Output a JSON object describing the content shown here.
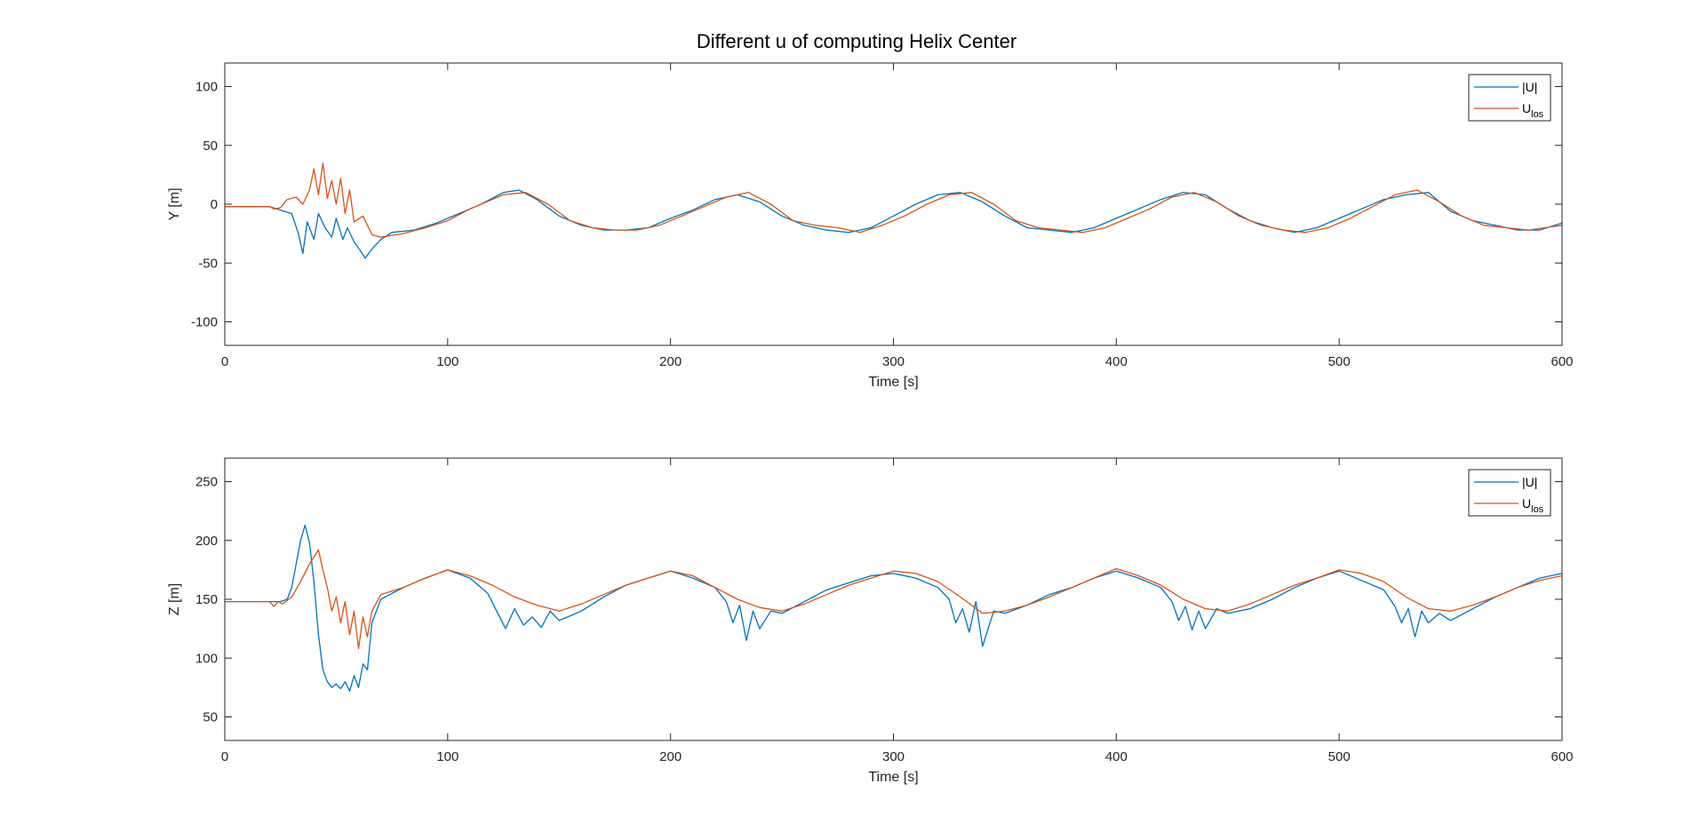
{
  "figure_title": "Different u of computing Helix Center",
  "colors": {
    "U": "#0072BD",
    "Ulos": "#D95319",
    "axes": "#262626"
  },
  "chart_data": [
    {
      "type": "line",
      "title": "Different u of computing Helix Center",
      "xlabel": "Time [s]",
      "ylabel": "Y [m]",
      "xlim": [
        0,
        600
      ],
      "ylim": [
        -120,
        120
      ],
      "xticks": [
        0,
        100,
        200,
        300,
        400,
        500,
        600
      ],
      "yticks": [
        -100,
        -50,
        0,
        50,
        100
      ],
      "xtick_labels": [
        "0",
        "100",
        "200",
        "300",
        "400",
        "500",
        "600"
      ],
      "ytick_labels": [
        "-100",
        "-50",
        "0",
        "50",
        "100"
      ],
      "legend_position": "top-right",
      "legend": {
        "entries": [
          {
            "main": "|U|",
            "sub": ""
          },
          {
            "main": "U",
            "sub": "los"
          }
        ]
      },
      "series": [
        {
          "name": "|U|",
          "x": [
            0,
            20,
            30,
            33,
            35,
            37,
            40,
            42,
            45,
            48,
            50,
            53,
            55,
            58,
            61,
            63,
            66,
            70,
            75,
            85,
            95,
            105,
            115,
            125,
            132,
            140,
            150,
            160,
            170,
            180,
            190,
            200,
            210,
            220,
            230,
            240,
            250,
            260,
            270,
            280,
            290,
            300,
            310,
            320,
            330,
            340,
            350,
            360,
            370,
            380,
            390,
            400,
            410,
            420,
            430,
            440,
            450,
            460,
            470,
            480,
            490,
            500,
            510,
            520,
            530,
            540,
            550,
            560,
            570,
            580,
            590,
            600
          ],
          "y": [
            -2,
            -2,
            -8,
            -25,
            -42,
            -15,
            -30,
            -8,
            -20,
            -28,
            -12,
            -30,
            -20,
            -32,
            -40,
            -46,
            -38,
            -30,
            -24,
            -22,
            -16,
            -8,
            0,
            10,
            12,
            4,
            -10,
            -18,
            -22,
            -22,
            -20,
            -12,
            -5,
            4,
            8,
            2,
            -10,
            -18,
            -22,
            -24,
            -20,
            -10,
            0,
            8,
            10,
            2,
            -10,
            -20,
            -22,
            -24,
            -20,
            -12,
            -4,
            4,
            10,
            8,
            -4,
            -14,
            -20,
            -24,
            -20,
            -12,
            -4,
            4,
            8,
            10,
            -6,
            -14,
            -18,
            -22,
            -22,
            -16
          ]
        },
        {
          "name": "U_los",
          "x": [
            0,
            20,
            22,
            25,
            28,
            32,
            35,
            38,
            40,
            42,
            44,
            46,
            48,
            50,
            52,
            54,
            56,
            58,
            62,
            66,
            70,
            80,
            90,
            100,
            110,
            125,
            135,
            145,
            155,
            165,
            175,
            185,
            195,
            205,
            215,
            225,
            235,
            245,
            255,
            265,
            275,
            285,
            295,
            305,
            315,
            325,
            335,
            345,
            355,
            365,
            375,
            385,
            395,
            405,
            415,
            425,
            435,
            445,
            455,
            465,
            475,
            485,
            495,
            505,
            515,
            525,
            535,
            545,
            555,
            565,
            575,
            585,
            600
          ],
          "y": [
            -2,
            -2,
            -4,
            -3,
            4,
            6,
            0,
            12,
            30,
            8,
            35,
            5,
            20,
            0,
            22,
            -8,
            12,
            -15,
            -10,
            -26,
            -28,
            -25,
            -20,
            -14,
            -4,
            8,
            10,
            0,
            -14,
            -20,
            -22,
            -22,
            -18,
            -10,
            -2,
            6,
            10,
            0,
            -14,
            -18,
            -20,
            -24,
            -18,
            -10,
            0,
            8,
            10,
            0,
            -14,
            -20,
            -22,
            -24,
            -20,
            -12,
            -4,
            6,
            10,
            2,
            -10,
            -18,
            -22,
            -24,
            -20,
            -12,
            -2,
            8,
            12,
            2,
            -10,
            -18,
            -20,
            -22,
            -18
          ]
        }
      ]
    },
    {
      "type": "line",
      "title": "",
      "xlabel": "Time [s]",
      "ylabel": "Z [m]",
      "xlim": [
        0,
        600
      ],
      "ylim": [
        30,
        270
      ],
      "xticks": [
        0,
        100,
        200,
        300,
        400,
        500,
        600
      ],
      "yticks": [
        50,
        100,
        150,
        200,
        250
      ],
      "xtick_labels": [
        "0",
        "100",
        "200",
        "300",
        "400",
        "500",
        "600"
      ],
      "ytick_labels": [
        "50",
        "100",
        "150",
        "200",
        "250"
      ],
      "legend_position": "top-right",
      "legend": {
        "entries": [
          {
            "main": "|U|",
            "sub": ""
          },
          {
            "main": "U",
            "sub": "los"
          }
        ]
      },
      "series": [
        {
          "name": "|U|",
          "x": [
            0,
            20,
            25,
            28,
            30,
            32,
            34,
            36,
            38,
            40,
            42,
            44,
            46,
            48,
            50,
            52,
            54,
            56,
            58,
            60,
            62,
            64,
            66,
            68,
            70,
            80,
            90,
            100,
            110,
            118,
            122,
            126,
            130,
            134,
            138,
            142,
            146,
            150,
            160,
            170,
            180,
            190,
            200,
            210,
            220,
            225,
            228,
            231,
            234,
            237,
            240,
            245,
            250,
            260,
            270,
            280,
            290,
            300,
            310,
            320,
            325,
            328,
            331,
            334,
            337,
            340,
            345,
            350,
            360,
            370,
            380,
            390,
            400,
            410,
            420,
            425,
            428,
            431,
            434,
            437,
            440,
            445,
            450,
            460,
            470,
            480,
            490,
            500,
            510,
            520,
            525,
            528,
            531,
            534,
            537,
            540,
            545,
            550,
            560,
            570,
            580,
            590,
            600
          ],
          "y": [
            148,
            148,
            148,
            150,
            160,
            180,
            200,
            213,
            198,
            165,
            120,
            90,
            80,
            75,
            78,
            74,
            80,
            72,
            85,
            75,
            95,
            90,
            130,
            140,
            150,
            160,
            168,
            175,
            168,
            155,
            140,
            125,
            142,
            128,
            135,
            126,
            140,
            132,
            140,
            152,
            162,
            168,
            174,
            168,
            160,
            148,
            130,
            145,
            115,
            140,
            125,
            140,
            138,
            148,
            158,
            164,
            170,
            172,
            168,
            160,
            150,
            130,
            142,
            122,
            148,
            110,
            140,
            138,
            145,
            154,
            160,
            168,
            174,
            168,
            160,
            148,
            132,
            144,
            124,
            140,
            125,
            142,
            138,
            142,
            150,
            160,
            168,
            174,
            166,
            158,
            144,
            130,
            142,
            118,
            140,
            130,
            138,
            132,
            142,
            152,
            160,
            168,
            172
          ]
        },
        {
          "name": "U_los",
          "x": [
            0,
            20,
            22,
            24,
            26,
            30,
            34,
            38,
            42,
            44,
            46,
            48,
            50,
            52,
            54,
            56,
            58,
            60,
            62,
            64,
            66,
            70,
            80,
            90,
            100,
            110,
            120,
            130,
            140,
            150,
            160,
            170,
            180,
            190,
            200,
            210,
            220,
            230,
            240,
            250,
            260,
            270,
            280,
            290,
            300,
            310,
            320,
            330,
            340,
            350,
            360,
            370,
            380,
            390,
            400,
            410,
            420,
            430,
            440,
            450,
            460,
            470,
            480,
            490,
            500,
            510,
            520,
            530,
            540,
            550,
            560,
            570,
            580,
            590,
            600
          ],
          "y": [
            148,
            148,
            144,
            148,
            146,
            152,
            165,
            180,
            192,
            175,
            160,
            140,
            152,
            130,
            148,
            120,
            140,
            108,
            135,
            118,
            140,
            154,
            160,
            168,
            175,
            170,
            162,
            152,
            145,
            140,
            146,
            154,
            162,
            168,
            174,
            170,
            160,
            150,
            143,
            140,
            146,
            154,
            162,
            168,
            174,
            172,
            165,
            152,
            138,
            140,
            145,
            152,
            160,
            168,
            176,
            170,
            162,
            150,
            142,
            140,
            146,
            154,
            162,
            168,
            175,
            172,
            165,
            152,
            142,
            140,
            145,
            152,
            160,
            166,
            170
          ]
        }
      ]
    }
  ]
}
